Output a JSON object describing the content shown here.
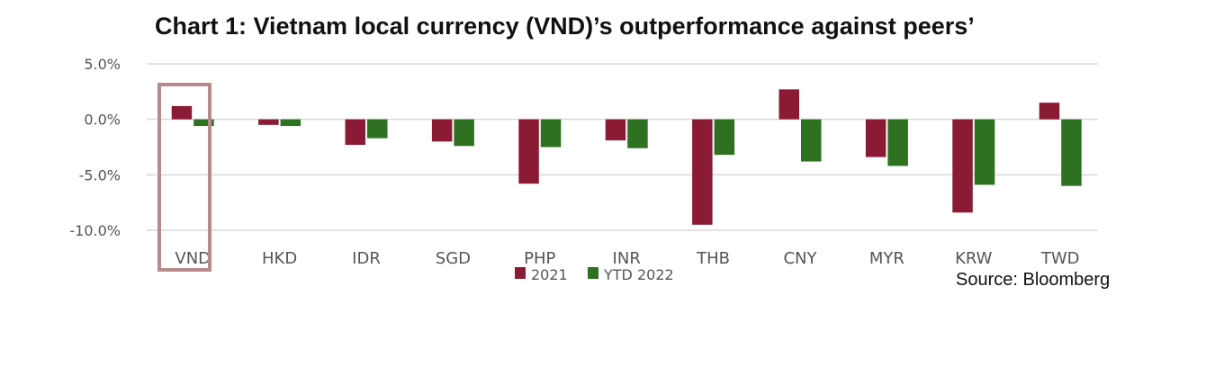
{
  "title": "Chart 1: Vietnam local currency (VND)’s outperformance against peers’",
  "source": "Source: Bloomberg",
  "colors": {
    "s2021": "#8b1a35",
    "ytd2022": "#2e7121",
    "highlight": "#b98a8c",
    "grid": "#d9d9d9"
  },
  "chart_data": {
    "type": "bar",
    "categories": [
      "VND",
      "HKD",
      "IDR",
      "SGD",
      "PHP",
      "INR",
      "THB",
      "CNY",
      "MYR",
      "KRW",
      "TWD"
    ],
    "series": [
      {
        "name": "2021",
        "values": [
          1.2,
          -0.5,
          -2.3,
          -2.0,
          -5.8,
          -1.9,
          -9.5,
          2.7,
          -3.4,
          -8.4,
          1.5
        ]
      },
      {
        "name": "YTD 2022",
        "values": [
          -0.6,
          -0.6,
          -1.7,
          -2.4,
          -2.5,
          -2.6,
          -3.2,
          -3.8,
          -4.2,
          -5.9,
          -6.0
        ]
      }
    ],
    "y_ticks": [
      "5.0%",
      "0.0%",
      "-5.0%",
      "-10.0%"
    ],
    "y_tick_values": [
      5,
      0,
      -5,
      -10
    ],
    "ylim": [
      -10,
      5
    ],
    "grid": true,
    "legend_position": "bottom-center",
    "highlighted_category": "VND"
  }
}
